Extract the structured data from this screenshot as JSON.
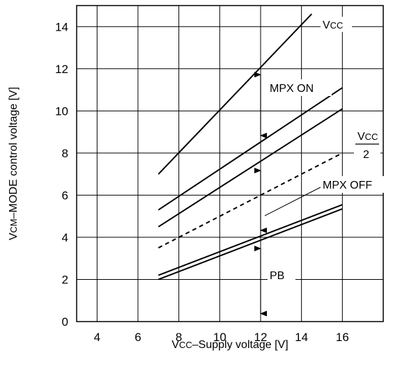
{
  "chart_data": {
    "type": "line",
    "xlabel": {
      "main": "V",
      "sub": "CC",
      "rest": "–Supply voltage [V]"
    },
    "ylabel": {
      "main": "V",
      "sub": "CM",
      "rest": "–MODE control voltage [V]"
    },
    "xlim": [
      3,
      18
    ],
    "ylim": [
      0,
      15
    ],
    "xticks": [
      4,
      6,
      8,
      10,
      12,
      14,
      16
    ],
    "yticks": [
      0,
      2,
      4,
      6,
      8,
      10,
      12,
      14
    ],
    "grid": true,
    "series": [
      {
        "key": "vcc",
        "style": "solid",
        "x": [
          7,
          14.5
        ],
        "y": [
          7,
          14.6
        ]
      },
      {
        "key": "mpxon_upper",
        "style": "solid",
        "x": [
          7,
          16
        ],
        "y": [
          5.3,
          11.1
        ]
      },
      {
        "key": "mpxon_lower",
        "style": "solid",
        "x": [
          7,
          16
        ],
        "y": [
          4.5,
          10.1
        ]
      },
      {
        "key": "vcc_half",
        "style": "dashed",
        "x": [
          7,
          16
        ],
        "y": [
          3.5,
          8.0
        ]
      },
      {
        "key": "pb_upper",
        "style": "solid",
        "x": [
          7,
          16
        ],
        "y": [
          2.2,
          5.55
        ]
      },
      {
        "key": "pb_lower",
        "style": "solid",
        "x": [
          7,
          16
        ],
        "y": [
          2.0,
          5.35
        ]
      }
    ],
    "arrows": [
      {
        "x": 12,
        "y_from": 12.05,
        "y_to": 8.5
      },
      {
        "x": 12,
        "y_from": 7.5,
        "y_to": 4.0
      },
      {
        "x": 12,
        "y_from": 3.8,
        "y_to": 0.05
      }
    ],
    "annotations": {
      "vcc": {
        "main": "V",
        "sub": "CC"
      },
      "mpx_on": "MPX ON",
      "vcc_half_num": {
        "main": "V",
        "sub": "CC"
      },
      "vcc_half_den": "2",
      "mpx_off": "MPX OFF",
      "pb": "PB"
    }
  }
}
